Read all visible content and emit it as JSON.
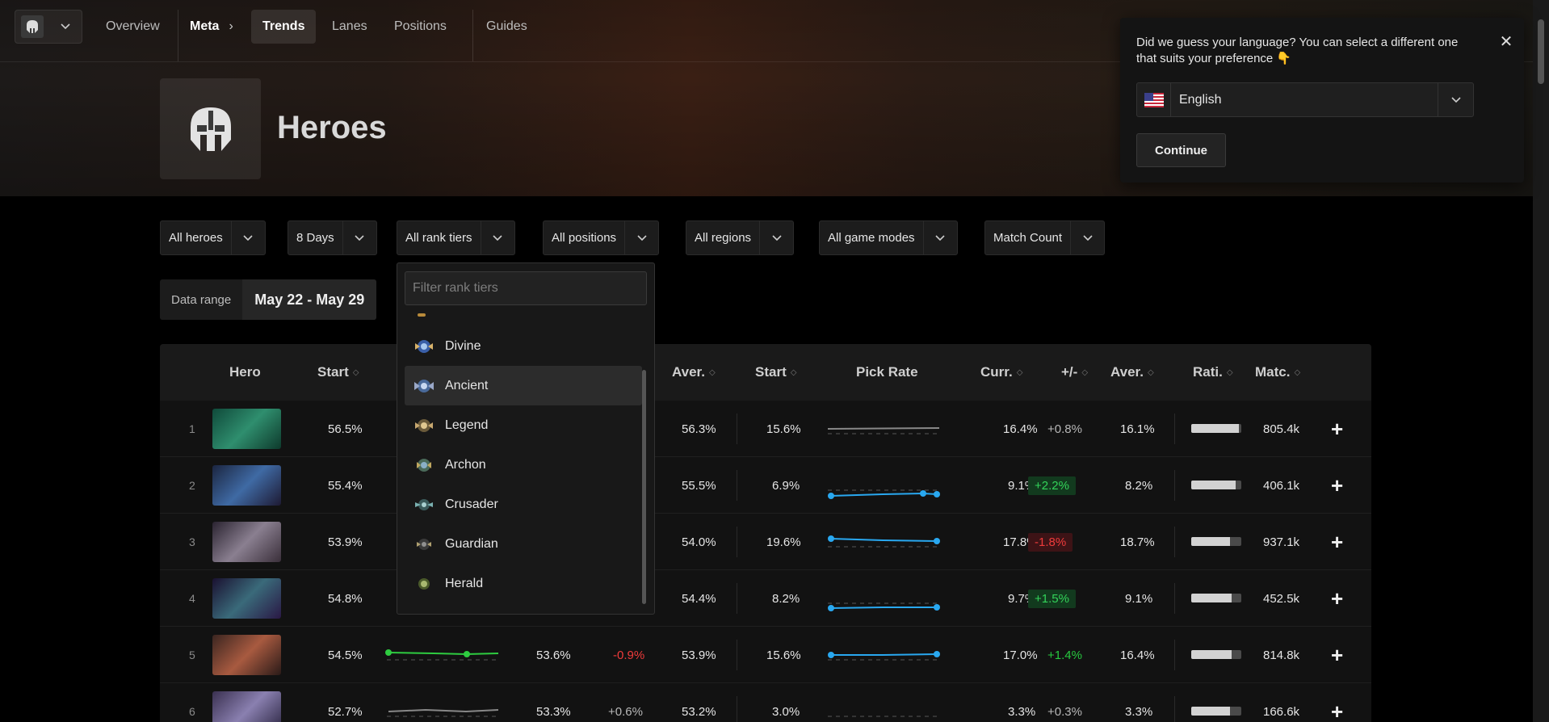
{
  "nav": {
    "items": [
      "Overview",
      "Meta",
      "Trends",
      "Lanes",
      "Positions",
      "Guides"
    ],
    "breadcrumb_sep": "›"
  },
  "page": {
    "title": "Heroes"
  },
  "filters": [
    {
      "label": "All heroes"
    },
    {
      "label": "8 Days"
    },
    {
      "label": "All rank tiers"
    },
    {
      "label": "All positions"
    },
    {
      "label": "All regions"
    },
    {
      "label": "All game modes"
    },
    {
      "label": "Match Count"
    }
  ],
  "date_range": {
    "label": "Data range",
    "value": "May 22 - May 29"
  },
  "table": {
    "headers": [
      "Hero",
      "Start",
      "Aver.",
      "Start",
      "Pick Rate",
      "Curr.",
      "+/-",
      "Aver.",
      "Rati.",
      "Matc."
    ],
    "rows": [
      {
        "rank": "1",
        "win_start": "56.5%",
        "win_curr": "",
        "win_delta": "",
        "win_avg": "56.3%",
        "pick_start": "15.6%",
        "pick_curr": "16.4%",
        "pick_delta": "+0.8%",
        "pick_avg": "16.1%",
        "ratio": 0.95,
        "matches": "805.4k"
      },
      {
        "rank": "2",
        "win_start": "55.4%",
        "win_curr": "",
        "win_delta": "",
        "win_avg": "55.5%",
        "pick_start": "6.9%",
        "pick_curr": "9.1%",
        "pick_delta": "+2.2%",
        "pick_avg": "8.2%",
        "ratio": 0.88,
        "matches": "406.1k"
      },
      {
        "rank": "3",
        "win_start": "53.9%",
        "win_curr": "",
        "win_delta": "",
        "win_avg": "54.0%",
        "pick_start": "19.6%",
        "pick_curr": "17.8%",
        "pick_delta": "-1.8%",
        "pick_avg": "18.7%",
        "ratio": 0.78,
        "matches": "937.1k"
      },
      {
        "rank": "4",
        "win_start": "54.8%",
        "win_curr": "",
        "win_delta": "",
        "win_avg": "54.4%",
        "pick_start": "8.2%",
        "pick_curr": "9.7%",
        "pick_delta": "+1.5%",
        "pick_avg": "9.1%",
        "ratio": 0.8,
        "matches": "452.5k"
      },
      {
        "rank": "5",
        "win_start": "54.5%",
        "win_curr": "53.6%",
        "win_delta": "-0.9%",
        "win_avg": "53.9%",
        "pick_start": "15.6%",
        "pick_curr": "17.0%",
        "pick_delta": "+1.4%",
        "pick_avg": "16.4%",
        "ratio": 0.8,
        "matches": "814.8k"
      },
      {
        "rank": "6",
        "win_start": "52.7%",
        "win_curr": "53.3%",
        "win_delta": "+0.6%",
        "win_avg": "53.2%",
        "pick_start": "3.0%",
        "pick_curr": "3.3%",
        "pick_delta": "+0.3%",
        "pick_avg": "3.3%",
        "ratio": 0.78,
        "matches": "166.6k"
      }
    ]
  },
  "rank_dropdown": {
    "placeholder": "Filter rank tiers",
    "items": [
      "Divine",
      "Ancient",
      "Legend",
      "Archon",
      "Crusader",
      "Guardian",
      "Herald"
    ],
    "active": "Ancient"
  },
  "language_popup": {
    "message": "Did we guess your language? You can select a different one that suits your preference 👇",
    "selected": "English",
    "continue_label": "Continue",
    "close": "✕"
  },
  "colors": {
    "positive": "#27c93f",
    "negative": "#ef3b3b",
    "pick_line": "#29a8f0",
    "win_line": "#2ecc40"
  }
}
